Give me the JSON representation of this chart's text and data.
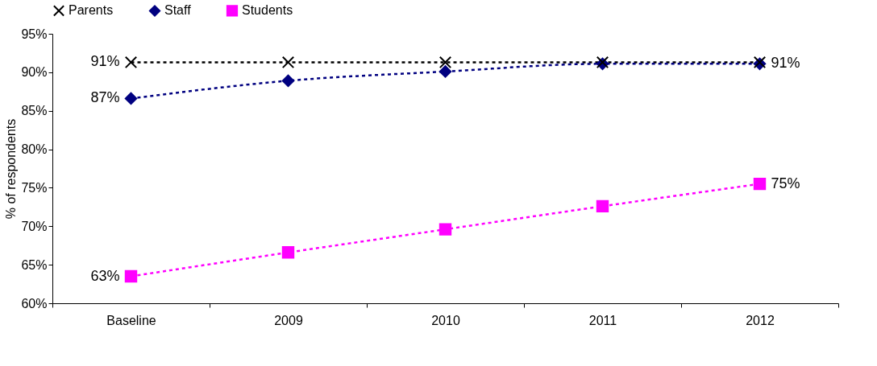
{
  "chart_data": {
    "type": "line",
    "ylabel": "% of respondents",
    "categories": [
      "Baseline",
      "2009",
      "2010",
      "2011",
      "2012"
    ],
    "ylim": [
      60,
      95
    ],
    "yticks": [
      {
        "value": 60,
        "label": "60%"
      },
      {
        "value": 65,
        "label": "65%"
      },
      {
        "value": 70,
        "label": "70%"
      },
      {
        "value": 75,
        "label": "75%"
      },
      {
        "value": 80,
        "label": "80%"
      },
      {
        "value": 85,
        "label": "85%"
      },
      {
        "value": 90,
        "label": "90%"
      },
      {
        "value": 95,
        "label": "95%"
      }
    ],
    "series": [
      {
        "name": "Parents",
        "color": "#000000",
        "marker": "cross",
        "values": [
          91.3,
          91.3,
          91.3,
          91.3,
          91.3
        ],
        "value_labels": [
          "91%",
          null,
          null,
          null,
          null
        ]
      },
      {
        "name": "Staff",
        "color": "#000080",
        "marker": "diamond",
        "values": [
          86.6,
          88.9,
          90.1,
          91.1,
          91.1
        ],
        "value_labels": [
          "87%",
          null,
          null,
          null,
          "91%"
        ]
      },
      {
        "name": "Students",
        "color": "#ff00ff",
        "marker": "square",
        "values": [
          63.5,
          66.6,
          69.6,
          72.6,
          75.5
        ],
        "value_labels": [
          "63%",
          null,
          null,
          null,
          "75%"
        ]
      }
    ],
    "line_style": "dashed",
    "grid": false,
    "legend": "top"
  }
}
